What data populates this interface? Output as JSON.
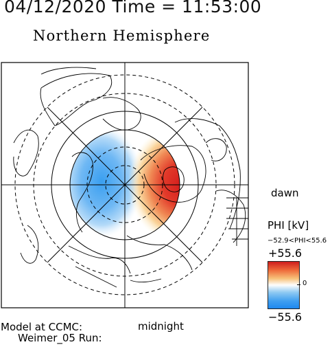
{
  "header": {
    "date_time": "04/12/2020 Time = 11:53:00"
  },
  "title": "Northern Hemisphere",
  "labels": {
    "dawn": "dawn",
    "midnight": "midnight"
  },
  "colorbar": {
    "title": "PHI [kV]",
    "range_text": "−52.9<PHI<55.6",
    "max_label": "+55.6",
    "zero_label": "0",
    "min_label": "−55.6",
    "colors": {
      "positive": "#d62020",
      "zero": "#ffffff",
      "negative": "#1e88ef"
    }
  },
  "footer": {
    "model_line": "Model at CCMC:",
    "run_line": "Weimer_05 Run:"
  }
}
